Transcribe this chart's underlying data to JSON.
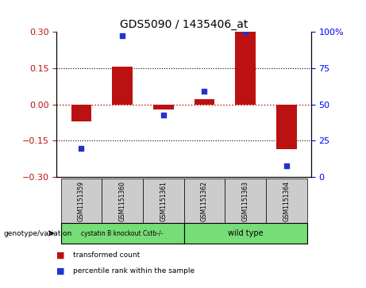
{
  "title": "GDS5090 / 1435406_at",
  "samples": [
    "GSM1151359",
    "GSM1151360",
    "GSM1151361",
    "GSM1151362",
    "GSM1151363",
    "GSM1151364"
  ],
  "bar_values": [
    -0.07,
    0.155,
    -0.02,
    0.02,
    0.3,
    -0.185
  ],
  "scatter_values": [
    -0.18,
    0.285,
    -0.045,
    0.055,
    0.3,
    -0.255
  ],
  "bar_color": "#bb1111",
  "scatter_color": "#2233cc",
  "ylim_left": [
    -0.3,
    0.3
  ],
  "yticks_left": [
    -0.3,
    -0.15,
    0,
    0.15,
    0.3
  ],
  "ylim_right": [
    0,
    100
  ],
  "yticks_right": [
    0,
    25,
    50,
    75,
    100
  ],
  "yticklabels_right": [
    "0",
    "25",
    "50",
    "75",
    "100%"
  ],
  "group1_label": "cystatin B knockout Cstb-/-",
  "group2_label": "wild type",
  "group_label": "genotype/variation",
  "legend_bar_label": "transformed count",
  "legend_scatter_label": "percentile rank within the sample",
  "dotted_hlines": [
    -0.15,
    0.15
  ],
  "zero_line_color": "#cc0000",
  "bar_width": 0.5,
  "gray_color": "#cccccc",
  "green_color": "#77dd77"
}
